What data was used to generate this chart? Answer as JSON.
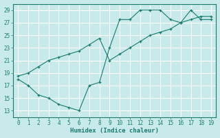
{
  "xlabel": "Humidex (Indice chaleur)",
  "x": [
    0,
    1,
    2,
    3,
    4,
    5,
    6,
    7,
    8,
    9,
    10,
    11,
    12,
    13,
    14,
    15,
    16,
    17,
    18,
    19
  ],
  "line1_y": [
    18.0,
    17.0,
    15.5,
    15.0,
    14.0,
    13.5,
    13.0,
    17.0,
    17.5,
    23.0,
    27.5,
    27.5,
    29.0,
    29.0,
    29.0,
    27.5,
    27.0,
    29.0,
    27.5,
    27.5
  ],
  "line2_y": [
    18.5,
    19.0,
    20.0,
    21.0,
    21.5,
    22.0,
    22.5,
    23.5,
    24.5,
    21.0,
    22.0,
    23.0,
    24.0,
    25.0,
    25.5,
    26.0,
    27.0,
    27.5,
    28.0,
    28.0
  ],
  "line_color": "#1a7a6e",
  "bg_color": "#c8eaea",
  "grid_color": "#ffffff",
  "xlim": [
    -0.5,
    19.5
  ],
  "ylim": [
    12,
    30
  ],
  "yticks": [
    13,
    15,
    17,
    19,
    21,
    23,
    25,
    27,
    29
  ],
  "xticks": [
    0,
    1,
    2,
    3,
    4,
    5,
    6,
    7,
    8,
    9,
    10,
    11,
    12,
    13,
    14,
    15,
    16,
    17,
    18,
    19
  ]
}
